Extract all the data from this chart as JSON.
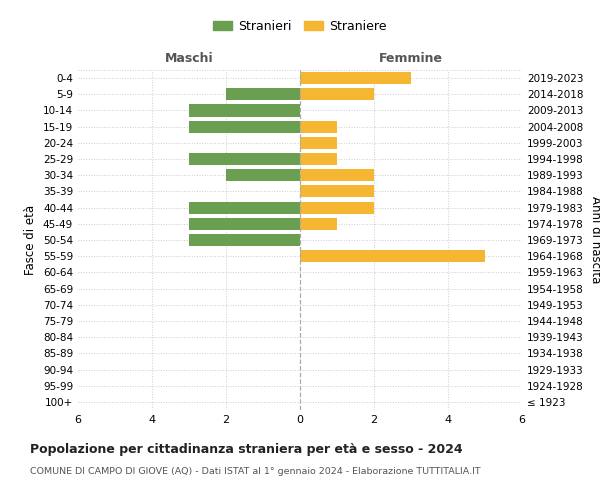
{
  "age_groups": [
    "100+",
    "95-99",
    "90-94",
    "85-89",
    "80-84",
    "75-79",
    "70-74",
    "65-69",
    "60-64",
    "55-59",
    "50-54",
    "45-49",
    "40-44",
    "35-39",
    "30-34",
    "25-29",
    "20-24",
    "15-19",
    "10-14",
    "5-9",
    "0-4"
  ],
  "birth_years": [
    "≤ 1923",
    "1924-1928",
    "1929-1933",
    "1934-1938",
    "1939-1943",
    "1944-1948",
    "1949-1953",
    "1954-1958",
    "1959-1963",
    "1964-1968",
    "1969-1973",
    "1974-1978",
    "1979-1983",
    "1984-1988",
    "1989-1993",
    "1994-1998",
    "1999-2003",
    "2004-2008",
    "2009-2013",
    "2014-2018",
    "2019-2023"
  ],
  "maschi": [
    0,
    0,
    0,
    0,
    0,
    0,
    0,
    0,
    0,
    0,
    3,
    3,
    3,
    0,
    2,
    3,
    0,
    3,
    3,
    2,
    0
  ],
  "femmine": [
    0,
    0,
    0,
    0,
    0,
    0,
    0,
    0,
    0,
    5,
    0,
    1,
    2,
    2,
    2,
    1,
    1,
    1,
    0,
    2,
    3
  ],
  "color_maschi": "#6a9e50",
  "color_femmine": "#f5b731",
  "title": "Popolazione per cittadinanza straniera per età e sesso - 2024",
  "subtitle": "COMUNE DI CAMPO DI GIOVE (AQ) - Dati ISTAT al 1° gennaio 2024 - Elaborazione TUTTITALIA.IT",
  "legend_maschi": "Stranieri",
  "legend_femmine": "Straniere",
  "label_maschi": "Maschi",
  "label_femmine": "Femmine",
  "ylabel_left": "Fasce di età",
  "ylabel_right": "Anni di nascita",
  "xlim": 6,
  "background_color": "#ffffff",
  "grid_color": "#cccccc"
}
